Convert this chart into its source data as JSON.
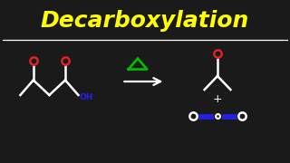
{
  "title": "Decarboxylation",
  "title_color": "#FFFF00",
  "title_fontsize": 18,
  "bg_color": "#1a1a1a",
  "line_color": "#FFFFFF",
  "red_color": "#DD2222",
  "blue_color": "#2222EE",
  "green_color": "#00BB00",
  "lw": 1.8,
  "lw_arrow": 1.5
}
